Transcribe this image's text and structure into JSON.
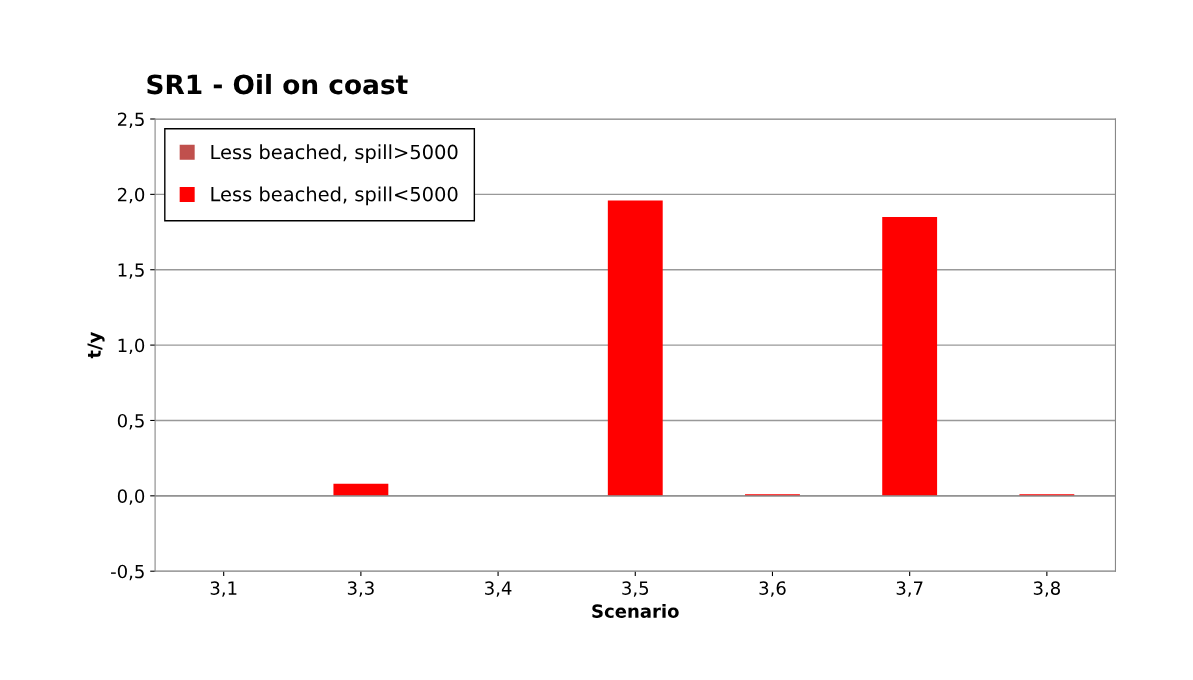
{
  "chart_data": {
    "type": "bar",
    "title": "SR1 - Oil on coast",
    "xlabel": "Scenario",
    "ylabel": "t/y",
    "categories": [
      "3,1",
      "3,3",
      "3,4",
      "3,5",
      "3,6",
      "3,7",
      "3,8"
    ],
    "stacked": true,
    "series": [
      {
        "name": "Less beached, spill>5000",
        "color": "#c0504d",
        "values": [
          0,
          0,
          0,
          0,
          0,
          0,
          0
        ]
      },
      {
        "name": "Less beached, spill<5000",
        "color": "#ff0000",
        "values": [
          null,
          0.08,
          null,
          1.96,
          0.01,
          1.85,
          0.01
        ]
      }
    ],
    "ylim": [
      -0.5,
      2.5
    ],
    "yticks": [
      {
        "value": -0.5,
        "label": "-0,5"
      },
      {
        "value": 0,
        "label": "0,0"
      },
      {
        "value": 0.5,
        "label": "0,5"
      },
      {
        "value": 1,
        "label": "1,0"
      },
      {
        "value": 1.5,
        "label": "1,5"
      },
      {
        "value": 2,
        "label": "2,0"
      },
      {
        "value": 2.5,
        "label": "2,5"
      }
    ],
    "grid": "y",
    "legend": "top left"
  }
}
